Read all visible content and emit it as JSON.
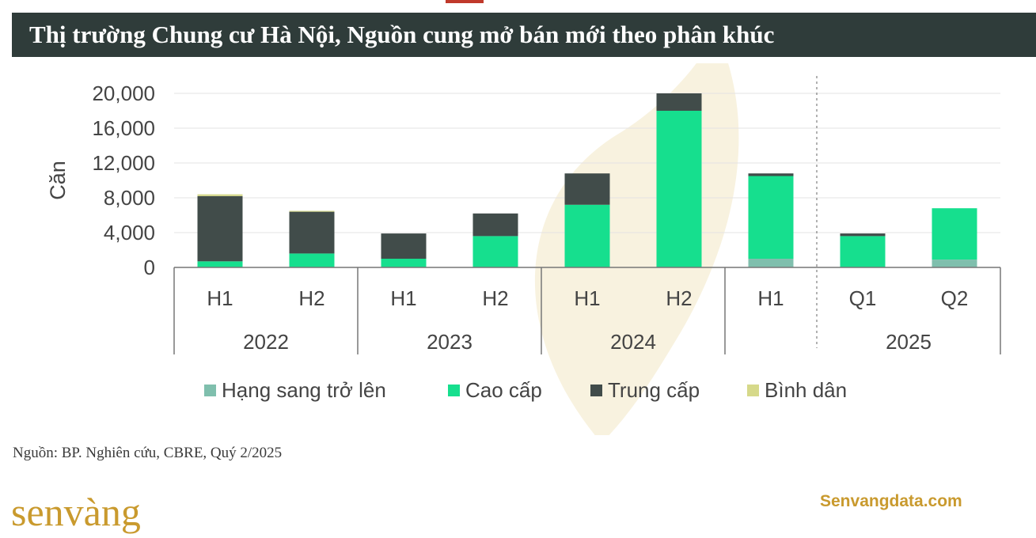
{
  "header": {
    "title": "Thị trường Chung cư Hà Nội, Nguồn cung mở bán mới theo phân khúc"
  },
  "colors": {
    "title_bar": "#2f3c3a",
    "accent_red": "#c0392b",
    "lux": "#7fbfad",
    "cao": "#16df8e",
    "trung": "#414c4a",
    "binh": "#d6d98a",
    "brand_gold": "#c99a2e"
  },
  "chart_data": {
    "type": "bar",
    "stacked": true,
    "ylabel": "Căn",
    "xlabel": "",
    "ylim": [
      0,
      20000
    ],
    "yticks": [
      "0",
      "4,000",
      "8,000",
      "12,000",
      "16,000",
      "20,000"
    ],
    "ytick_values": [
      0,
      4000,
      8000,
      12000,
      16000,
      20000
    ],
    "categories": [
      "H1",
      "H2",
      "H1",
      "H2",
      "H1",
      "H2",
      "H1",
      "Q1",
      "Q2"
    ],
    "groups": [
      {
        "label": "2022",
        "categories": [
          "H1",
          "H2"
        ]
      },
      {
        "label": "2023",
        "categories": [
          "H1",
          "H2"
        ]
      },
      {
        "label": "2024",
        "categories": [
          "H1",
          "H2"
        ]
      },
      {
        "label": "2025",
        "categories": [
          "H1",
          "Q1",
          "Q2"
        ]
      }
    ],
    "separator_style": "dashed line between H1 2025 and Q1 2025",
    "series": [
      {
        "name": "Hạng sang trở lên",
        "color": "#7fbfad",
        "values": [
          0,
          0,
          0,
          0,
          0,
          0,
          1000,
          0,
          900
        ]
      },
      {
        "name": "Cao cấp",
        "color": "#16df8e",
        "values": [
          700,
          1600,
          1000,
          3600,
          7200,
          18000,
          9500,
          3600,
          5900
        ]
      },
      {
        "name": "Trung cấp",
        "color": "#414c4a",
        "values": [
          7500,
          4800,
          2900,
          2600,
          3600,
          2000,
          300,
          300,
          0
        ]
      },
      {
        "name": "Bình dân",
        "color": "#d6d98a",
        "values": [
          200,
          100,
          0,
          0,
          0,
          0,
          0,
          0,
          0
        ]
      }
    ],
    "legend_position": "bottom",
    "grid": true
  },
  "footer": {
    "source": "Nguồn: BP. Nghiên cứu, CBRE, Quý 2/2025",
    "website": "Senvangdata.com",
    "logo_text": "senvàng"
  }
}
